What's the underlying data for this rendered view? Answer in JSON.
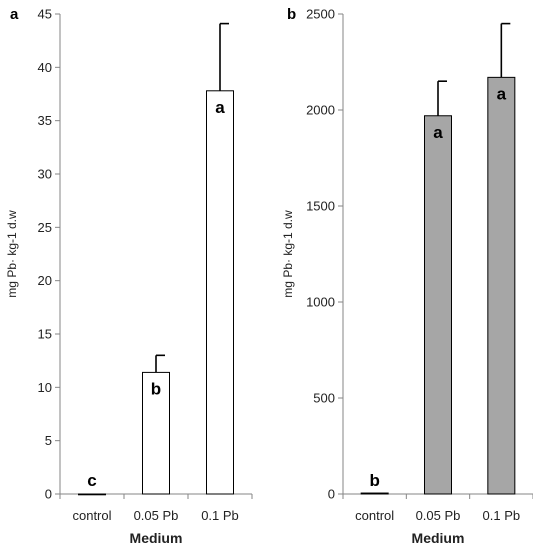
{
  "chart_data": [
    {
      "type": "bar",
      "panel_label": "a",
      "categories": [
        "control",
        "0.05 Pb",
        "0.1 Pb"
      ],
      "values": [
        0,
        11.4,
        37.8
      ],
      "error_plus": [
        0,
        1.6,
        6.3
      ],
      "significance_letters": [
        "c",
        "b",
        "a"
      ],
      "bar_color": "#ffffff",
      "xlabel": "Medium",
      "ylabel": "mg Pb· kg-1 d.w",
      "ylim": [
        0,
        45
      ],
      "yticks": [
        0,
        5,
        10,
        15,
        20,
        25,
        30,
        35,
        40,
        45
      ],
      "grid": false
    },
    {
      "type": "bar",
      "panel_label": "b",
      "categories": [
        "control",
        "0.05 Pb",
        "0.1 Pb"
      ],
      "values": [
        5,
        1970,
        2170
      ],
      "error_plus": [
        0,
        180,
        280
      ],
      "significance_letters": [
        "b",
        "a",
        "a"
      ],
      "bar_color": "#a6a6a6",
      "xlabel": "Medium",
      "ylabel": "mg Pb· kg-1 d.w",
      "ylim": [
        0,
        2500
      ],
      "yticks": [
        0,
        500,
        1000,
        1500,
        2000,
        2500
      ],
      "grid": false
    }
  ]
}
